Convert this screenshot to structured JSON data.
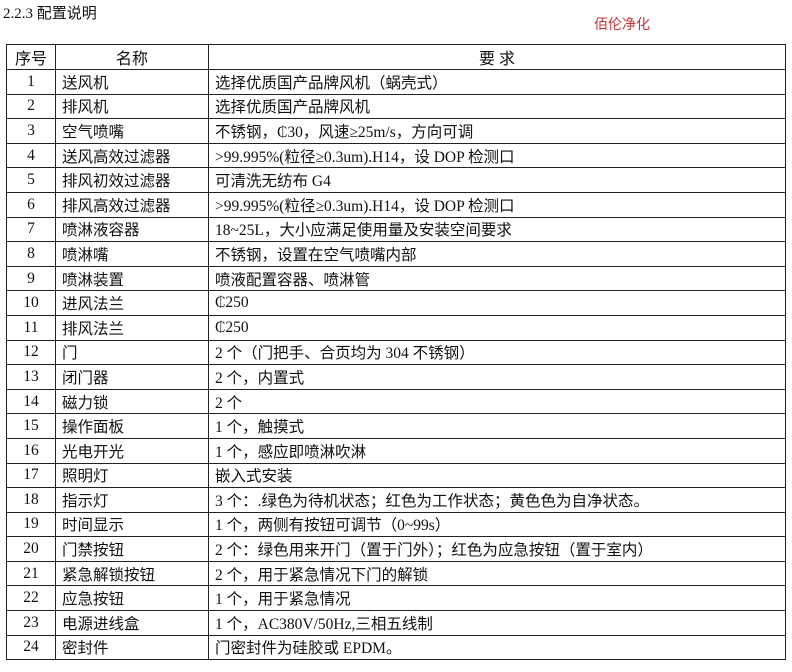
{
  "title": "2.2.3 配置说明",
  "brand": "佰伦净化",
  "brand_color": "#c8343a",
  "table": {
    "headers": [
      "序号",
      "名称",
      "要 求"
    ],
    "rows": [
      [
        "1",
        "送风机",
        "选择优质国产品牌风机（蜗壳式）"
      ],
      [
        "2",
        "排风机",
        "选择优质国产品牌风机"
      ],
      [
        "3",
        "空气喷嘴",
        "不锈钢，₵30，风速≥25m/s，方向可调"
      ],
      [
        "4",
        "送风高效过滤器",
        ">99.995%(粒径≥0.3um).H14，设 DOP 检测口"
      ],
      [
        "5",
        "排风初效过滤器",
        "可清洗无纺布 G4"
      ],
      [
        "6",
        "排风高效过滤器",
        ">99.995%(粒径≥0.3um).H14，设 DOP 检测口"
      ],
      [
        "7",
        "喷淋液容器",
        "18~25L，大小应满足使用量及安装空间要求"
      ],
      [
        "8",
        "喷淋嘴",
        "不锈钢，设置在空气喷嘴内部"
      ],
      [
        "9",
        "喷淋装置",
        "喷液配置容器、喷淋管"
      ],
      [
        "10",
        "进风法兰",
        "₵250"
      ],
      [
        "11",
        "排风法兰",
        "₵250"
      ],
      [
        "12",
        "门",
        "2 个（门把手、合页均为 304 不锈钢）"
      ],
      [
        "13",
        "闭门器",
        "2 个，内置式"
      ],
      [
        "14",
        "磁力锁",
        "2 个"
      ],
      [
        "15",
        "操作面板",
        "1 个，触摸式"
      ],
      [
        "16",
        "光电开光",
        "1 个，感应即喷淋吹淋"
      ],
      [
        "17",
        "照明灯",
        "嵌入式安装"
      ],
      [
        "18",
        "指示灯",
        "3 个：.绿色为待机状态；红色为工作状态；黄色色为自净状态。"
      ],
      [
        "19",
        "时间显示",
        "1 个，两侧有按钮可调节（0~99s）"
      ],
      [
        "20",
        "门禁按钮",
        "2 个：绿色用来开门（置于门外）；红色为应急按钮（置于室内）"
      ],
      [
        "21",
        "紧急解锁按钮",
        "2 个，用于紧急情况下门的解锁"
      ],
      [
        "22",
        "应急按钮",
        "1 个，用于紧急情况"
      ],
      [
        "23",
        "电源进线盒",
        "1 个，AC380V/50Hz,三相五线制"
      ],
      [
        "24",
        "密封件",
        "门密封件为硅胶或 EPDM。"
      ]
    ]
  }
}
